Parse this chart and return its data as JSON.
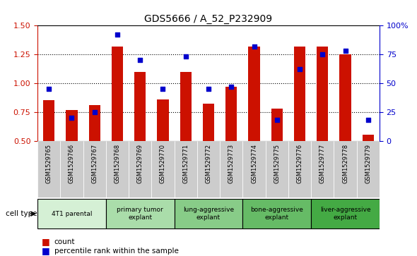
{
  "title": "GDS5666 / A_52_P232909",
  "samples": [
    "GSM1529765",
    "GSM1529766",
    "GSM1529767",
    "GSM1529768",
    "GSM1529769",
    "GSM1529770",
    "GSM1529771",
    "GSM1529772",
    "GSM1529773",
    "GSM1529774",
    "GSM1529775",
    "GSM1529776",
    "GSM1529777",
    "GSM1529778",
    "GSM1529779"
  ],
  "count_values": [
    0.85,
    0.77,
    0.81,
    1.32,
    1.1,
    0.86,
    1.1,
    0.82,
    0.97,
    1.32,
    0.78,
    1.32,
    1.32,
    1.25,
    0.55
  ],
  "percentile_values": [
    45,
    20,
    25,
    92,
    70,
    45,
    73,
    45,
    47,
    82,
    18,
    62,
    75,
    78,
    18
  ],
  "cell_types": [
    {
      "label": "4T1 parental",
      "start": 0,
      "end": 3,
      "color": "#d5f0d5"
    },
    {
      "label": "primary tumor\nexplant",
      "start": 3,
      "end": 6,
      "color": "#aaddaa"
    },
    {
      "label": "lung-aggressive\nexplant",
      "start": 6,
      "end": 9,
      "color": "#88cc88"
    },
    {
      "label": "bone-aggressive\nexplant",
      "start": 9,
      "end": 12,
      "color": "#66bb66"
    },
    {
      "label": "liver-aggressive\nexplant",
      "start": 12,
      "end": 15,
      "color": "#44aa44"
    }
  ],
  "ylim_left": [
    0.5,
    1.5
  ],
  "ylim_right": [
    0,
    100
  ],
  "yticks_left": [
    0.5,
    0.75,
    1.0,
    1.25,
    1.5
  ],
  "yticks_right": [
    0,
    25,
    50,
    75,
    100
  ],
  "bar_color": "#cc1100",
  "dot_color": "#0000cc",
  "bar_width": 0.5,
  "bg_color": "#ffffff",
  "sample_bg_color": "#cccccc"
}
